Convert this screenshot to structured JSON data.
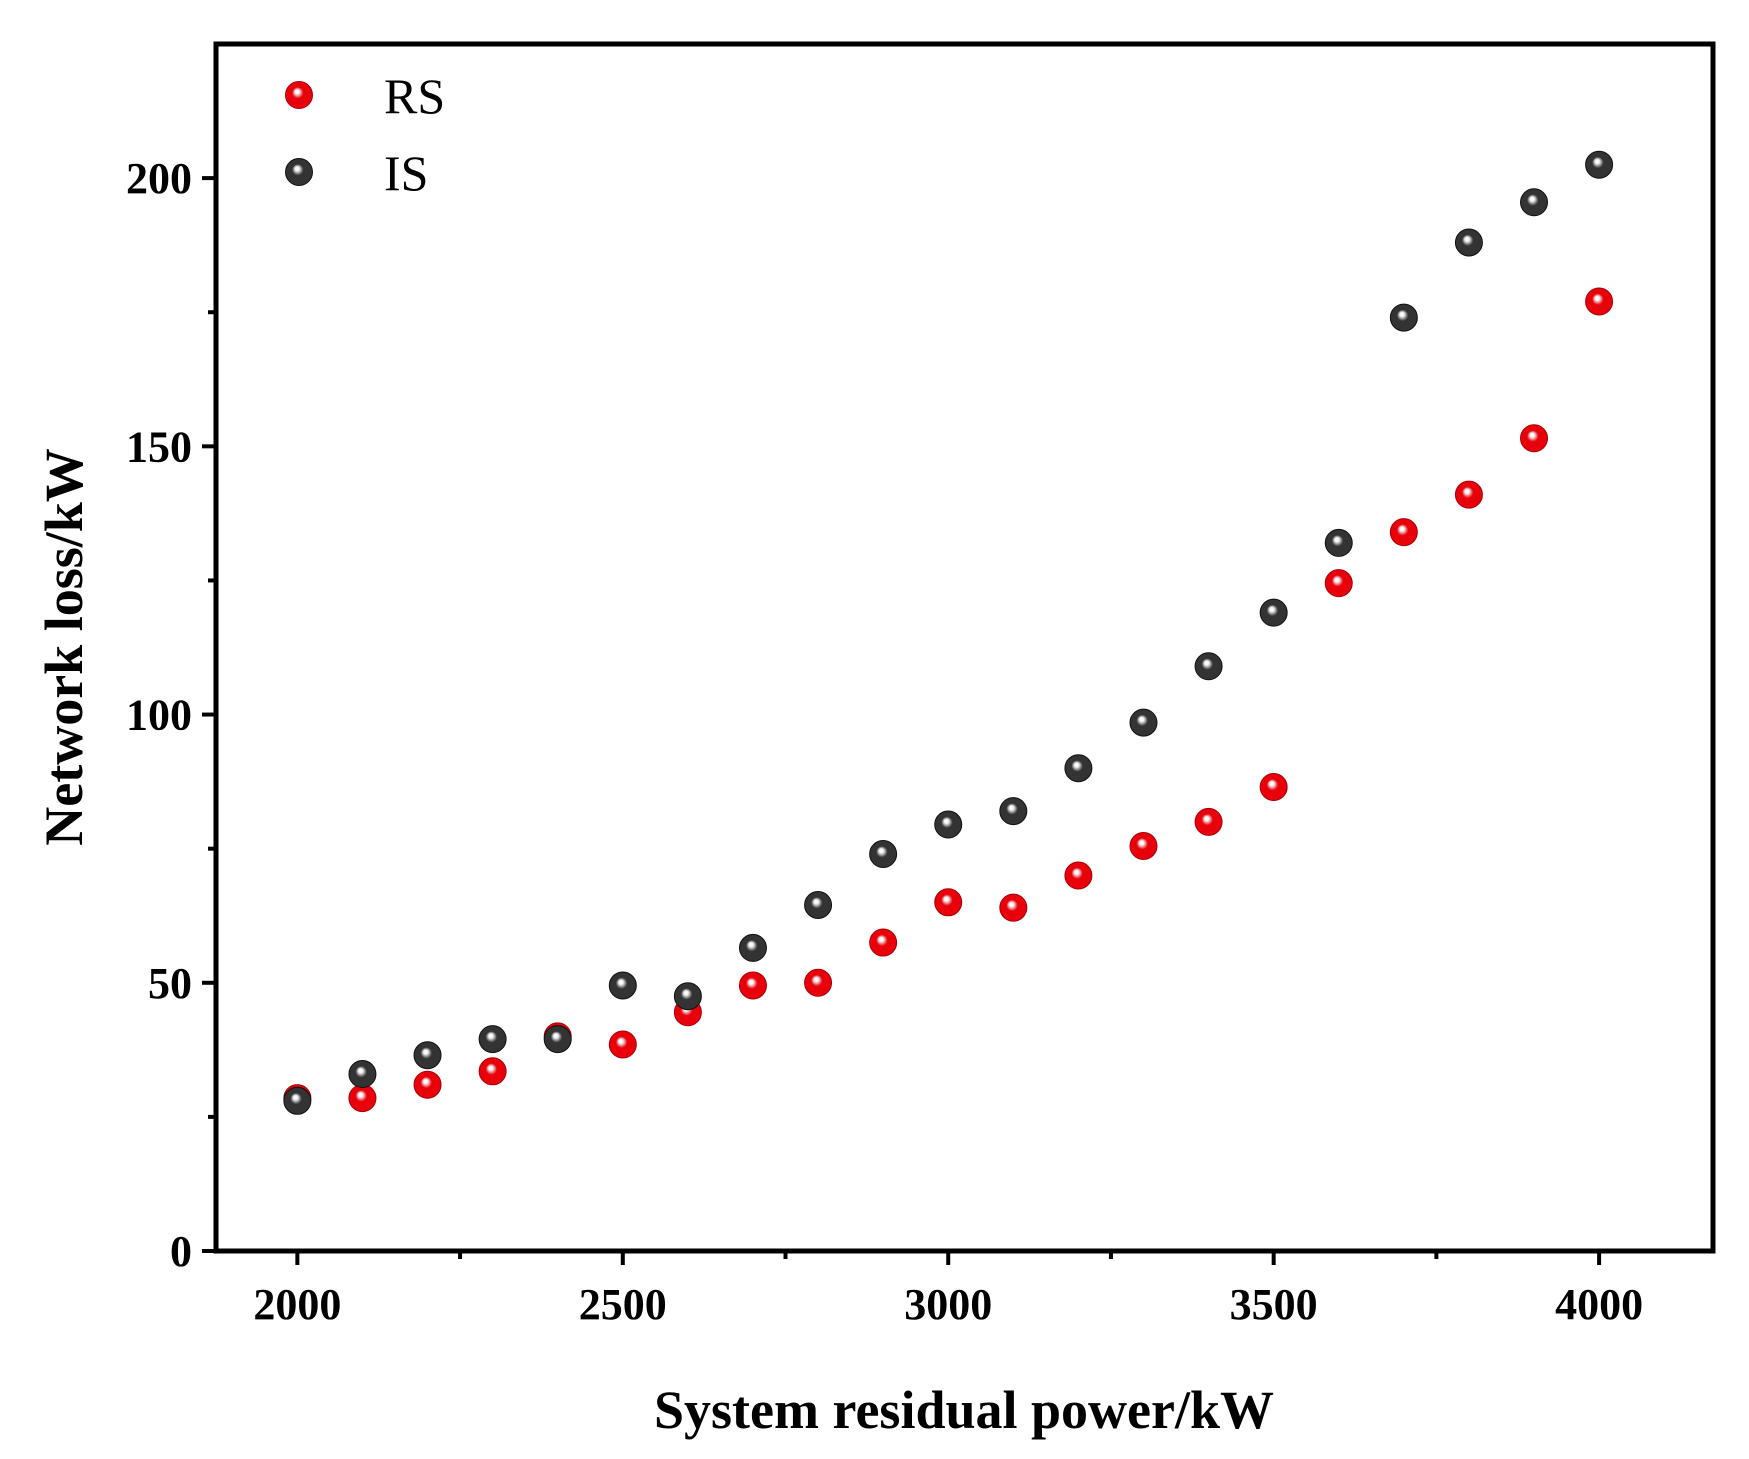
{
  "chart_data": {
    "type": "scatter",
    "title": "",
    "xlabel": "System residual power/kW",
    "ylabel": "Network loss/kW",
    "xlim": [
      1875,
      4175
    ],
    "ylim": [
      0,
      225
    ],
    "x_ticks": [
      "2000",
      "2500",
      "3000",
      "3500",
      "4000"
    ],
    "y_ticks": [
      "0",
      "50",
      "100",
      "150",
      "200"
    ],
    "grid": false,
    "legend_position": "top-left",
    "x": [
      2000,
      2100,
      2200,
      2300,
      2400,
      2500,
      2600,
      2700,
      2800,
      2900,
      3000,
      3100,
      3200,
      3300,
      3400,
      3500,
      3600,
      3700,
      3800,
      3900,
      4000
    ],
    "series": [
      {
        "name": "RS",
        "color": "#e8000b",
        "values": [
          28.5,
          28.5,
          31,
          33.5,
          40,
          38.5,
          44.5,
          49.5,
          50,
          57.5,
          65,
          64,
          70,
          75.5,
          80,
          86.5,
          124.5,
          134,
          141,
          151.5,
          177
        ]
      },
      {
        "name": "IS",
        "color": "#333333",
        "values": [
          28,
          33,
          36.5,
          39.5,
          39.5,
          49.5,
          47.5,
          56.5,
          64.5,
          74,
          79.5,
          82,
          90,
          98.5,
          109,
          119,
          132,
          174,
          188,
          195.5,
          202.5
        ]
      }
    ]
  }
}
